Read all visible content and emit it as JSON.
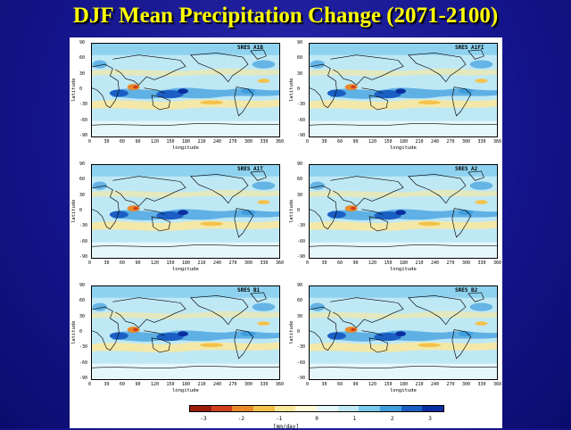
{
  "slide": {
    "title": "DJF Mean Precipitation Change (2071-2100)"
  },
  "panels": [
    {
      "label": "SRES A1B"
    },
    {
      "label": "SRES A1FI"
    },
    {
      "label": "SRES A1T"
    },
    {
      "label": "SRES A2"
    },
    {
      "label": "SRES B1"
    },
    {
      "label": "SRES B2"
    }
  ],
  "axes": {
    "xlabel": "longitude",
    "ylabel": "latitude",
    "xticks": [
      "0",
      "30",
      "60",
      "90",
      "120",
      "150",
      "180",
      "210",
      "240",
      "270",
      "300",
      "330",
      "360"
    ],
    "yticks": [
      "90",
      "60",
      "30",
      "0",
      "-30",
      "-60",
      "-90"
    ]
  },
  "colorbar": {
    "ticks": [
      "-3",
      "-2",
      "-1",
      "0",
      "1",
      "2",
      "3"
    ],
    "units": "[mm/day]",
    "range": [
      -3,
      3
    ],
    "colors": [
      "#9b1c0c",
      "#d0401c",
      "#e88a2a",
      "#f4c24a",
      "#fbe79a",
      "#fffbd8",
      "#e6f7fb",
      "#bfe8f5",
      "#79c9ec",
      "#3f9ede",
      "#1b5fc4",
      "#0b2ea0"
    ]
  },
  "colors": {
    "slide_background": "#14148a",
    "title": "#ffff00",
    "ocean_base": "#cfeef7",
    "wet_strong": "#1b5fc4",
    "wet_medium": "#79c9ec",
    "dry_light": "#fbe79a",
    "dry_strong": "#d0401c"
  }
}
